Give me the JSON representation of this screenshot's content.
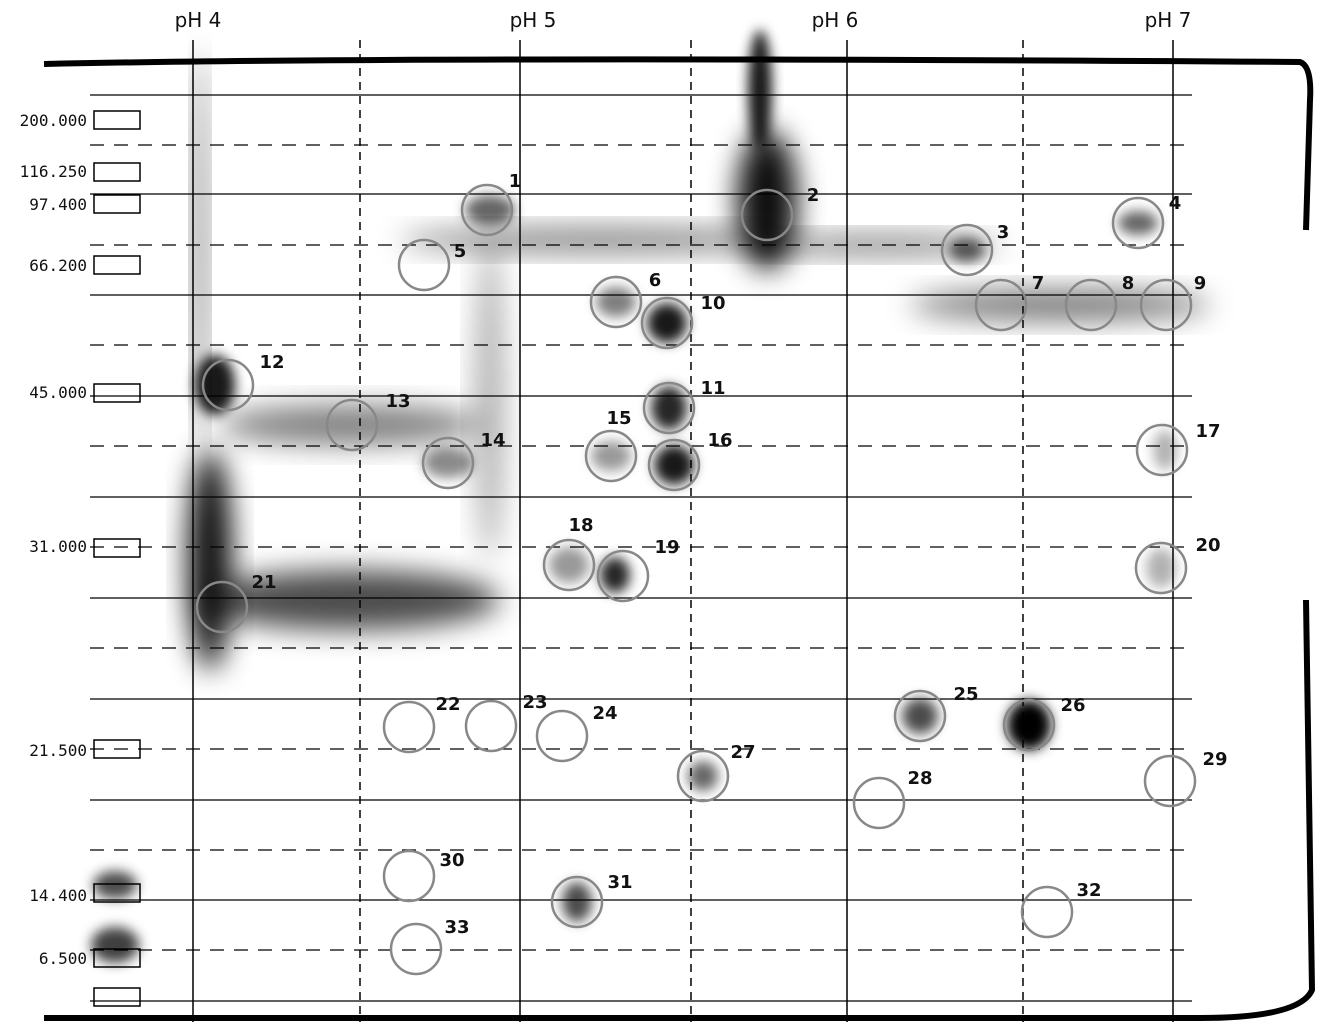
{
  "ph_labels": [
    "pH 4",
    "pH 5",
    "pH 6",
    "pH 7"
  ],
  "mw_labels": [
    "200.000",
    "116.250",
    "97.400",
    "66.200",
    "45.000",
    "31.000",
    "21.500",
    "14.400",
    "6.500"
  ],
  "spots": [
    "1",
    "2",
    "3",
    "4",
    "5",
    "6",
    "7",
    "8",
    "9",
    "10",
    "11",
    "12",
    "13",
    "14",
    "15",
    "16",
    "17",
    "18",
    "19",
    "20",
    "21",
    "22",
    "23",
    "24",
    "25",
    "26",
    "27",
    "28",
    "29",
    "30",
    "31",
    "32",
    "33"
  ]
}
